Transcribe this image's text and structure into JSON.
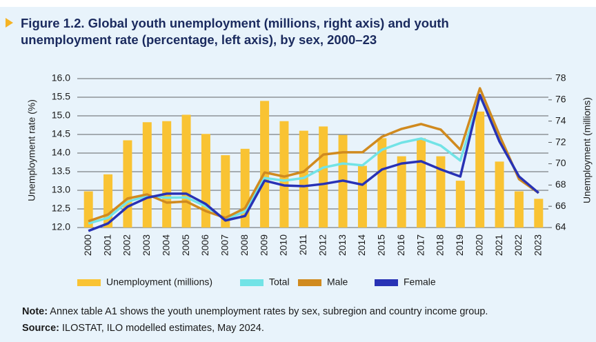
{
  "chart_data": {
    "type": "combo",
    "title": "Figure 1.2.  Global youth unemployment (millions, right axis) and youth unemployment rate (percentage, left axis), by sex, 2000–23",
    "y_label": "Unemployment rate (%)",
    "y2_label": "Unemployment (millions)",
    "categories": [
      "2000",
      "2001",
      "2002",
      "2003",
      "2004",
      "2005",
      "2006",
      "2007",
      "2008",
      "2009",
      "2010",
      "2011",
      "2012",
      "2013",
      "2014",
      "2015",
      "2016",
      "2017",
      "2018",
      "2019",
      "2020",
      "2021",
      "2022",
      "2023"
    ],
    "ylim": [
      12.0,
      16.0
    ],
    "yticks": [
      {
        "value": 12.0,
        "label": "12.0"
      },
      12.5,
      {
        "value": 13.0,
        "label": "13.0"
      },
      13.5,
      {
        "value": 14.0,
        "label": "14.0"
      },
      14.5,
      {
        "value": 15.0,
        "label": "15.0"
      },
      15.5,
      {
        "value": 16.0,
        "label": "16.0"
      }
    ],
    "y2lim": [
      64,
      78
    ],
    "y2ticks": [
      64,
      66,
      68,
      70,
      72,
      74,
      76,
      78
    ],
    "grid": true,
    "series": [
      {
        "name": "Unemployment (millions)",
        "type": "bar",
        "axis": "y2",
        "color": "#f9c333",
        "values": [
          67.4,
          69.0,
          72.2,
          73.9,
          74.0,
          74.6,
          72.8,
          70.8,
          71.4,
          75.9,
          74.0,
          73.1,
          73.5,
          72.7,
          69.8,
          72.4,
          70.7,
          72.4,
          70.7,
          68.4,
          74.9,
          70.2,
          67.4,
          66.7
        ]
      },
      {
        "name": "Total",
        "type": "line",
        "color": "#72e3e6",
        "values": [
          12.11,
          12.26,
          12.69,
          12.85,
          12.8,
          12.81,
          12.57,
          12.22,
          12.43,
          13.33,
          13.26,
          13.33,
          13.61,
          13.72,
          13.67,
          14.09,
          14.28,
          14.39,
          14.2,
          13.8,
          15.52,
          14.4,
          13.33,
          12.93
        ]
      },
      {
        "name": "Male",
        "type": "line",
        "color": "#d08a1f",
        "values": [
          12.17,
          12.35,
          12.78,
          12.89,
          12.67,
          12.7,
          12.44,
          12.26,
          12.52,
          13.48,
          13.37,
          13.5,
          13.96,
          14.02,
          14.02,
          14.44,
          14.65,
          14.78,
          14.63,
          14.09,
          15.74,
          14.48,
          13.3,
          12.93
        ]
      },
      {
        "name": "Female",
        "type": "line",
        "color": "#2832b5",
        "values": [
          11.91,
          12.11,
          12.56,
          12.8,
          12.91,
          12.91,
          12.63,
          12.19,
          12.31,
          13.26,
          13.13,
          13.11,
          13.17,
          13.26,
          13.15,
          13.56,
          13.72,
          13.78,
          13.56,
          13.37,
          15.56,
          14.31,
          13.37,
          12.93
        ]
      }
    ]
  },
  "notes": {
    "note_label": "Note:",
    "note_text": "Annex table A1 shows the youth unemployment rates by sex, subregion and country income group.",
    "source_label": "Source:",
    "source_text": "ILOSTAT, ILO modelled estimates, May 2024."
  }
}
